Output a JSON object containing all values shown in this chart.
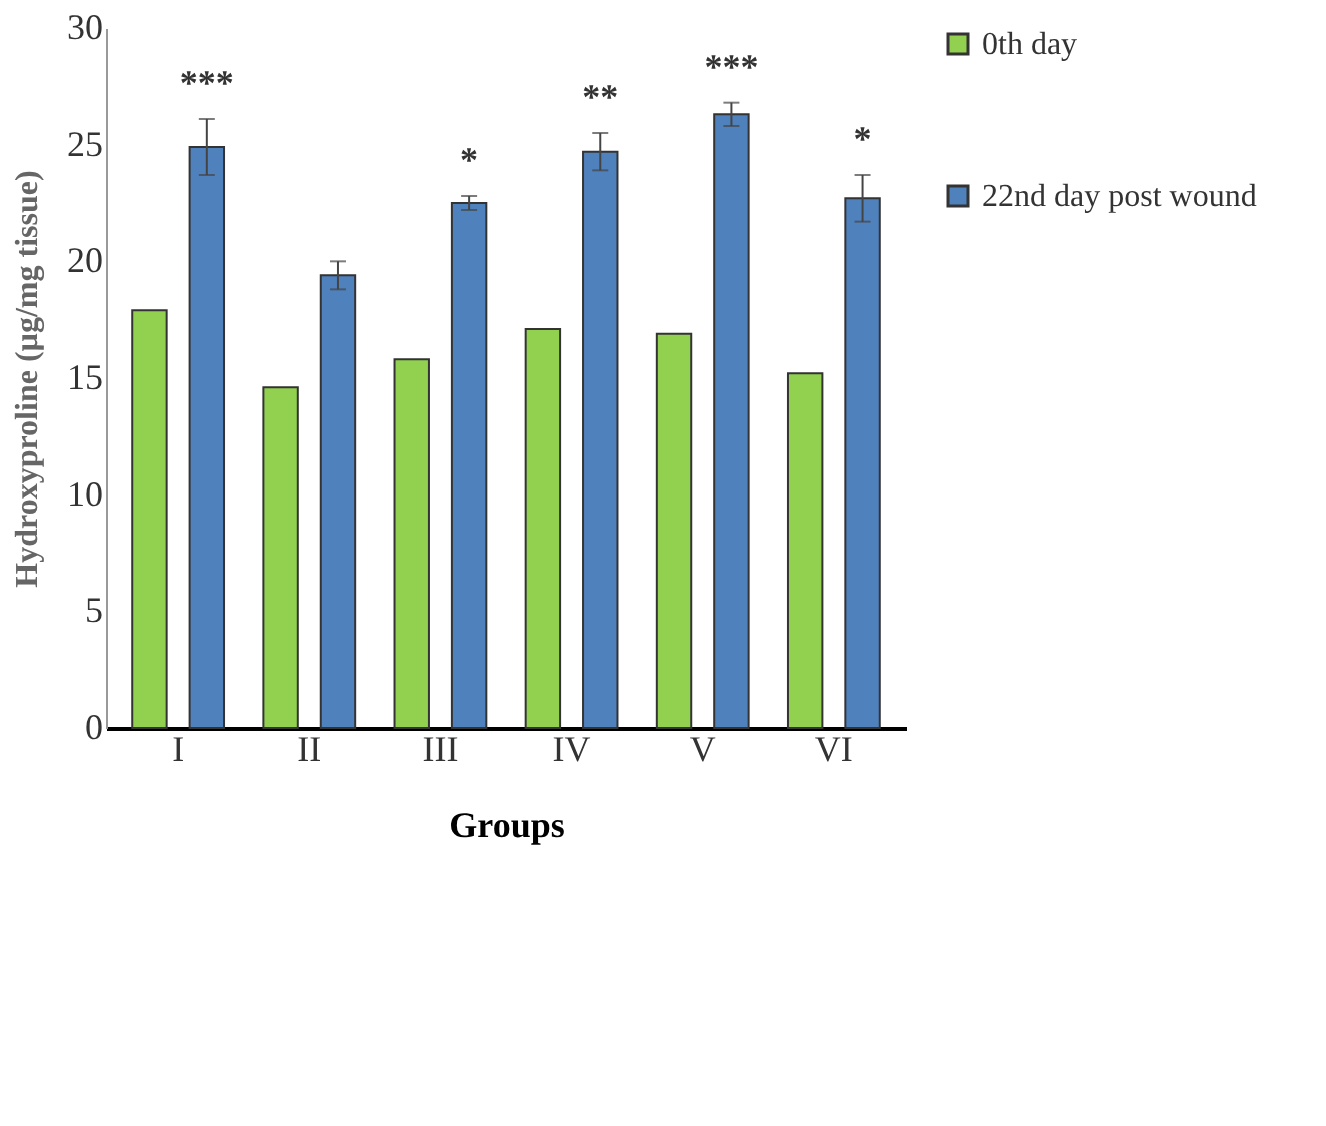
{
  "chart_data": {
    "type": "bar",
    "xlabel": "Groups",
    "ylabel": "Hydroxyproline (µg/mg tissue)",
    "categories": [
      "I",
      "II",
      "III",
      "IV",
      "V",
      "VI"
    ],
    "series": [
      {
        "name": "0th day",
        "color": "#92d050",
        "values": [
          17.9,
          14.6,
          15.8,
          17.1,
          16.9,
          15.2
        ]
      },
      {
        "name": "22nd day post wound",
        "color": "#4f81bd",
        "values": [
          24.9,
          19.4,
          22.5,
          24.7,
          26.3,
          22.7
        ],
        "errors": [
          1.2,
          0.6,
          0.3,
          0.8,
          0.5,
          1.0
        ],
        "value_labels": [
          "***",
          null,
          "*",
          "**",
          "***",
          "*"
        ]
      }
    ],
    "ylim": [
      0,
      30
    ],
    "yticks": [
      0,
      5,
      10,
      15,
      20,
      25,
      30
    ],
    "grid": false,
    "legend": "right"
  }
}
